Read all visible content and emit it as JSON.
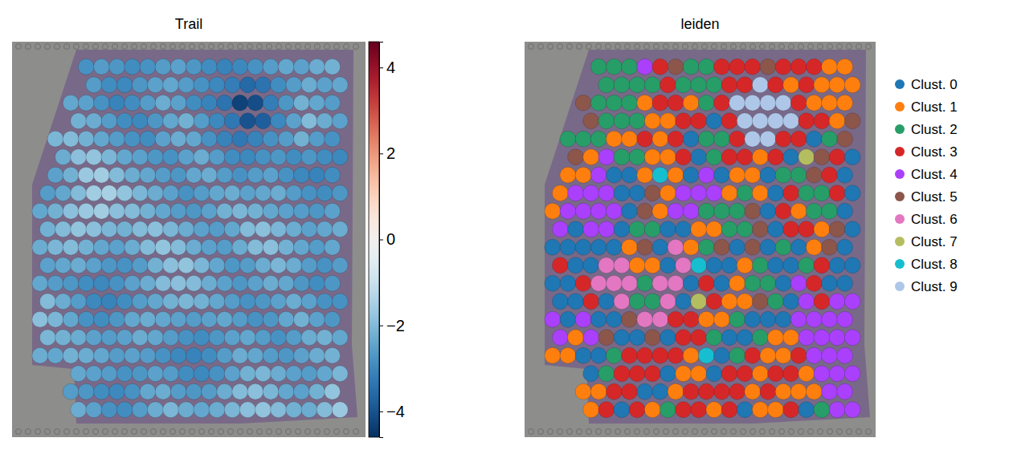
{
  "chart_data": [
    {
      "type": "spatial",
      "title": "Trail",
      "color_range": [
        -4.6,
        4.6
      ],
      "color_ticks": [
        {
          "value": -4,
          "label": "−4"
        },
        {
          "value": -2,
          "label": "−2"
        },
        0,
        2,
        4
      ],
      "cells": [
        [
          null,
          null,
          null,
          -2.8,
          -2.6,
          -2.7,
          -2.9,
          -2.8,
          -2.6,
          -2.5,
          -2.7,
          -2.9,
          -3.1,
          -3.0,
          -2.8,
          -2.6,
          -2.4,
          -2.5,
          -2.3,
          -2.2
        ],
        [
          null,
          null,
          null,
          -2.6,
          -2.9,
          -3.0,
          -2.7,
          -2.5,
          -2.4,
          -2.6,
          -2.8,
          -3.0,
          -3.2,
          -3.6,
          -3.4,
          -2.9,
          -2.6,
          -2.3,
          -2.5,
          -2.4
        ],
        [
          null,
          null,
          -2.4,
          -2.5,
          -2.8,
          -3.1,
          -2.9,
          -2.6,
          -2.3,
          -2.5,
          -2.9,
          -3.1,
          -3.4,
          -4.3,
          -4.1,
          -3.2,
          -2.7,
          -2.2,
          -2.4,
          -2.6
        ],
        [
          null,
          null,
          -2.2,
          -2.3,
          -2.6,
          -2.9,
          -3.0,
          -2.7,
          -2.4,
          -2.2,
          -2.6,
          -3.0,
          -3.3,
          -4.0,
          -3.8,
          -3.0,
          -2.5,
          -2.0,
          -2.3,
          -2.5
        ],
        [
          null,
          -2.1,
          -2.0,
          -2.2,
          -2.4,
          -2.6,
          -2.8,
          -2.9,
          -2.5,
          -2.3,
          -2.4,
          -2.8,
          -3.1,
          -3.3,
          -3.1,
          -2.8,
          -2.6,
          -2.2,
          -2.6,
          -2.8
        ],
        [
          null,
          -2.3,
          -1.9,
          -1.8,
          -2.1,
          -2.4,
          -2.5,
          -2.7,
          -2.8,
          -2.5,
          -2.3,
          -2.6,
          -2.9,
          -3.0,
          -2.8,
          -2.7,
          -2.9,
          -2.7,
          -2.9,
          -3.0
        ],
        [
          null,
          -2.5,
          -2.2,
          -1.7,
          -1.6,
          -2.0,
          -2.3,
          -2.4,
          -2.6,
          -2.7,
          -2.4,
          -2.3,
          -2.6,
          -2.8,
          -2.6,
          -2.5,
          -2.8,
          -3.0,
          -3.1,
          -2.9
        ],
        [
          -2.6,
          -2.4,
          -2.0,
          -1.6,
          -1.5,
          -1.8,
          -2.1,
          -2.3,
          -2.5,
          -2.8,
          -2.6,
          -2.4,
          -2.3,
          -2.5,
          -2.4,
          -2.3,
          -2.6,
          -2.8,
          -2.9,
          -2.7
        ],
        [
          -2.4,
          -2.2,
          -1.9,
          -1.7,
          -1.6,
          -1.9,
          -2.0,
          -2.2,
          -2.4,
          -2.6,
          -2.7,
          -2.5,
          -2.2,
          -2.1,
          -2.2,
          -2.4,
          -2.5,
          -2.6,
          -2.7,
          -2.5
        ],
        [
          -2.2,
          -2.0,
          -1.8,
          -1.9,
          -2.1,
          -2.2,
          -2.0,
          -1.9,
          -2.1,
          -2.3,
          -2.5,
          -2.6,
          -2.4,
          -2.0,
          -1.9,
          -2.1,
          -2.3,
          -2.5,
          -2.4,
          -2.3
        ],
        [
          -2.3,
          -2.1,
          -2.0,
          -2.2,
          -2.4,
          -2.5,
          -2.3,
          -2.0,
          -1.8,
          -2.0,
          -2.3,
          -2.5,
          -2.6,
          -2.3,
          -2.0,
          -1.9,
          -2.2,
          -2.4,
          -2.6,
          -2.4
        ],
        [
          -2.5,
          -2.4,
          -2.3,
          -2.5,
          -2.7,
          -2.8,
          -2.6,
          -2.2,
          -1.9,
          -1.8,
          -2.1,
          -2.4,
          -2.7,
          -2.6,
          -2.3,
          -2.1,
          -2.3,
          -2.6,
          -2.8,
          -2.6
        ],
        [
          -2.4,
          -2.6,
          -2.7,
          -2.9,
          -3.0,
          -2.8,
          -2.5,
          -2.3,
          -2.0,
          -1.9,
          -2.0,
          -2.3,
          -2.5,
          -2.7,
          -2.5,
          -2.3,
          -2.4,
          -2.7,
          -2.9,
          -2.7
        ],
        [
          -2.0,
          -2.3,
          -2.6,
          -3.0,
          -3.1,
          -2.9,
          -2.6,
          -2.4,
          -2.2,
          -2.1,
          -2.2,
          -2.4,
          -2.6,
          -2.8,
          -2.7,
          -2.5,
          -2.3,
          -2.5,
          -2.8,
          -2.8
        ],
        [
          -1.9,
          -2.1,
          -2.4,
          -2.8,
          -2.9,
          -2.7,
          -2.4,
          -2.3,
          -2.4,
          -2.5,
          -2.6,
          -2.5,
          -2.4,
          -2.6,
          -2.8,
          -2.7,
          -2.4,
          -2.2,
          -2.5,
          -2.7
        ],
        [
          -2.1,
          -2.2,
          -2.3,
          -2.5,
          -2.6,
          -2.5,
          -2.3,
          -2.4,
          -2.6,
          -2.8,
          -2.9,
          -2.7,
          -2.5,
          -2.4,
          -2.6,
          -2.8,
          -2.6,
          -2.3,
          -2.2,
          -2.4
        ],
        [
          -2.3,
          -2.4,
          -2.2,
          -2.3,
          -2.4,
          -2.6,
          -2.5,
          -2.6,
          -2.8,
          -3.0,
          -3.1,
          -2.9,
          -2.6,
          -2.3,
          -2.4,
          -2.6,
          -2.7,
          -2.5,
          -2.3,
          -2.2
        ],
        [
          null,
          null,
          -2.4,
          -2.5,
          -2.6,
          -2.8,
          -2.7,
          -2.5,
          -2.6,
          -2.9,
          -3.0,
          -2.8,
          -2.5,
          -2.2,
          -2.1,
          -2.3,
          -2.5,
          -2.6,
          -2.4,
          -2.1
        ],
        [
          null,
          null,
          -2.6,
          -2.7,
          -2.9,
          -3.0,
          -2.8,
          -2.4,
          -2.3,
          -2.6,
          -2.7,
          -2.6,
          -2.3,
          -2.0,
          -1.9,
          -2.1,
          -2.4,
          -2.5,
          -2.2,
          -1.8
        ],
        [
          null,
          null,
          -2.3,
          -2.5,
          -2.8,
          -2.9,
          -2.6,
          -2.3,
          -2.1,
          -2.3,
          -2.4,
          -2.3,
          -2.1,
          -1.9,
          -1.8,
          -2.0,
          -2.2,
          -2.3,
          -2.0,
          -1.7
        ]
      ]
    },
    {
      "type": "spatial",
      "title": "leiden",
      "legend": "right",
      "series": [
        {
          "name": "Clust. 0",
          "color": "#1f77b4"
        },
        {
          "name": "Clust. 1",
          "color": "#ff7f0e"
        },
        {
          "name": "Clust. 2",
          "color": "#279e68"
        },
        {
          "name": "Clust. 3",
          "color": "#d62728"
        },
        {
          "name": "Clust. 4",
          "color": "#aa40fc"
        },
        {
          "name": "Clust. 5",
          "color": "#8c564b"
        },
        {
          "name": "Clust. 6",
          "color": "#e377c2"
        },
        {
          "name": "Clust. 7",
          "color": "#b5bd61"
        },
        {
          "name": "Clust. 8",
          "color": "#17becf"
        },
        {
          "name": "Clust. 9",
          "color": "#aec7e8"
        }
      ],
      "cells": [
        [
          null,
          null,
          null,
          2,
          2,
          2,
          4,
          3,
          5,
          2,
          2,
          3,
          3,
          3,
          5,
          3,
          3,
          3,
          1,
          1
        ],
        [
          null,
          null,
          null,
          2,
          2,
          2,
          2,
          3,
          2,
          2,
          2,
          3,
          3,
          9,
          3,
          1,
          3,
          1,
          1,
          1
        ],
        [
          null,
          null,
          5,
          2,
          2,
          2,
          1,
          3,
          3,
          1,
          2,
          3,
          9,
          9,
          9,
          9,
          3,
          1,
          1,
          1
        ],
        [
          null,
          null,
          5,
          2,
          2,
          2,
          1,
          1,
          3,
          3,
          0,
          3,
          9,
          9,
          9,
          9,
          3,
          3,
          1,
          5
        ],
        [
          null,
          2,
          2,
          2,
          1,
          1,
          3,
          1,
          3,
          0,
          2,
          2,
          3,
          9,
          9,
          3,
          3,
          0,
          2,
          5
        ],
        [
          null,
          5,
          1,
          4,
          2,
          2,
          1,
          1,
          3,
          0,
          2,
          3,
          3,
          1,
          3,
          0,
          7,
          5,
          3,
          0
        ],
        [
          null,
          1,
          1,
          4,
          0,
          0,
          1,
          8,
          1,
          0,
          4,
          0,
          1,
          1,
          0,
          2,
          2,
          5,
          3,
          0
        ],
        [
          1,
          4,
          4,
          4,
          0,
          0,
          5,
          1,
          4,
          4,
          4,
          1,
          2,
          1,
          0,
          3,
          2,
          2,
          3,
          0
        ],
        [
          1,
          4,
          4,
          4,
          4,
          0,
          5,
          1,
          4,
          4,
          2,
          2,
          2,
          5,
          0,
          3,
          1,
          2,
          2,
          0
        ],
        [
          4,
          0,
          4,
          4,
          0,
          2,
          2,
          0,
          0,
          1,
          1,
          2,
          2,
          5,
          0,
          3,
          3,
          1,
          5,
          0
        ],
        [
          0,
          0,
          0,
          0,
          0,
          1,
          5,
          0,
          6,
          1,
          2,
          5,
          0,
          5,
          0,
          2,
          0,
          1,
          5,
          0
        ],
        [
          3,
          0,
          0,
          6,
          6,
          1,
          1,
          0,
          6,
          8,
          0,
          0,
          1,
          2,
          0,
          0,
          2,
          3,
          0,
          0
        ],
        [
          0,
          0,
          3,
          6,
          6,
          6,
          2,
          6,
          6,
          0,
          3,
          0,
          1,
          2,
          2,
          0,
          4,
          3,
          0,
          0
        ],
        [
          0,
          0,
          3,
          0,
          6,
          2,
          2,
          6,
          0,
          7,
          3,
          1,
          1,
          5,
          2,
          0,
          4,
          3,
          4,
          4
        ],
        [
          4,
          0,
          4,
          0,
          0,
          5,
          6,
          6,
          3,
          3,
          1,
          1,
          2,
          0,
          0,
          0,
          4,
          4,
          4,
          4
        ],
        [
          4,
          1,
          4,
          5,
          0,
          0,
          5,
          0,
          3,
          3,
          2,
          0,
          0,
          2,
          1,
          1,
          4,
          4,
          4,
          4
        ],
        [
          1,
          1,
          0,
          0,
          2,
          3,
          3,
          3,
          3,
          1,
          8,
          0,
          2,
          3,
          1,
          1,
          3,
          4,
          4,
          4
        ],
        [
          null,
          null,
          0,
          2,
          3,
          3,
          3,
          0,
          1,
          1,
          0,
          3,
          3,
          1,
          3,
          3,
          1,
          4,
          4,
          4
        ],
        [
          null,
          null,
          1,
          1,
          3,
          3,
          0,
          0,
          1,
          3,
          3,
          3,
          3,
          1,
          3,
          1,
          1,
          1,
          4,
          4
        ],
        [
          null,
          null,
          1,
          3,
          0,
          3,
          1,
          2,
          3,
          3,
          1,
          3,
          0,
          1,
          1,
          3,
          0,
          2,
          4,
          4
        ]
      ]
    }
  ]
}
